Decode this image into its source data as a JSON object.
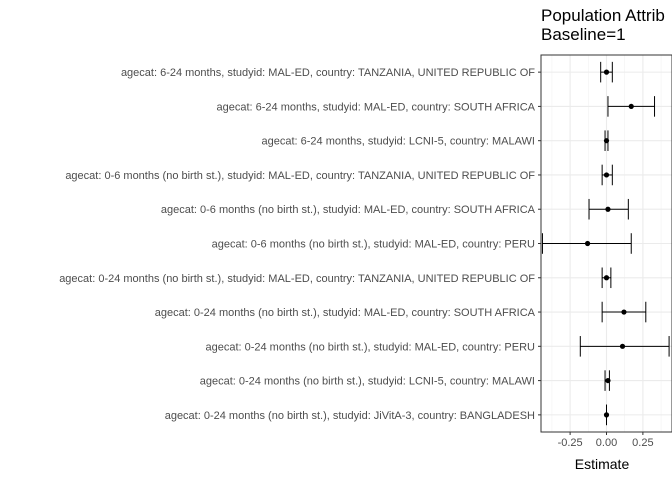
{
  "chart_data": {
    "type": "forest",
    "title_lines": [
      "Population Attrib",
      "Baseline=1"
    ],
    "xlabel": "Estimate",
    "ylabel": "",
    "xlim": [
      -0.45,
      0.45
    ],
    "x_ticks": [
      -0.25,
      0.0,
      0.25
    ],
    "x_tick_labels": [
      "-0.25",
      "0.00",
      "0.25"
    ],
    "grid": true,
    "categories": [
      "agecat: 6-24 months, studyid: MAL-ED, country: TANZANIA, UNITED REPUBLIC OF",
      "agecat: 6-24 months, studyid: MAL-ED, country: SOUTH AFRICA",
      "agecat: 6-24 months, studyid: LCNI-5, country: MALAWI",
      "agecat: 0-6 months (no birth st.), studyid: MAL-ED, country: TANZANIA, UNITED REPUBLIC OF",
      "agecat: 0-6 months (no birth st.), studyid: MAL-ED, country: SOUTH AFRICA",
      "agecat: 0-6 months (no birth st.), studyid: MAL-ED, country: PERU",
      "agecat: 0-24 months (no birth st.), studyid: MAL-ED, country: TANZANIA, UNITED REPUBLIC OF",
      "agecat: 0-24 months (no birth st.), studyid: MAL-ED, country: SOUTH AFRICA",
      "agecat: 0-24 months (no birth st.), studyid: MAL-ED, country: PERU",
      "agecat: 0-24 months (no birth st.), studyid: LCNI-5, country: MALAWI",
      "agecat: 0-24 months (no birth st.), studyid: JiVitA-3, country: BANGLADESH"
    ],
    "estimates": [
      0.0,
      0.17,
      0.0,
      0.0,
      0.01,
      -0.13,
      0.0,
      0.12,
      0.11,
      0.01,
      0.0
    ],
    "lower": [
      -0.04,
      0.01,
      -0.01,
      -0.03,
      -0.12,
      -0.44,
      -0.03,
      -0.03,
      -0.18,
      -0.01,
      0.0
    ],
    "upper": [
      0.04,
      0.33,
      0.01,
      0.04,
      0.15,
      0.17,
      0.03,
      0.27,
      0.43,
      0.02,
      0.0
    ]
  }
}
